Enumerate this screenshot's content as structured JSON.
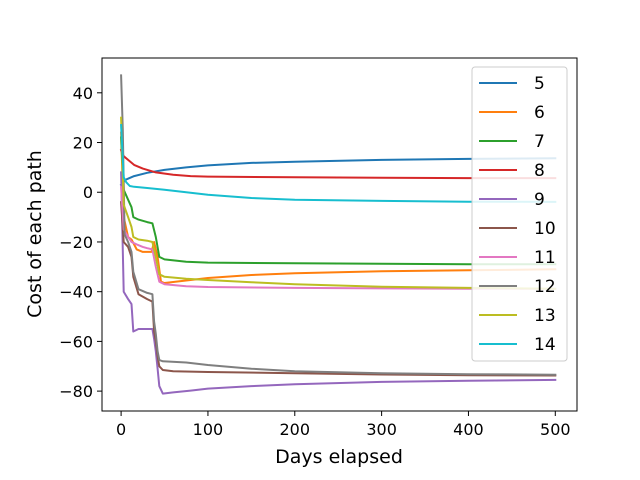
{
  "chart_data": {
    "type": "line",
    "title": "",
    "xlabel": "Days elapsed",
    "ylabel": "Cost of each path",
    "xlim": [
      -22,
      525
    ],
    "ylim": [
      -88,
      54
    ],
    "xticks": [
      0,
      100,
      200,
      300,
      400,
      500
    ],
    "yticks": [
      -80,
      -60,
      -40,
      -20,
      0,
      20,
      40
    ],
    "grid": false,
    "legend_position": "top-right",
    "series": [
      {
        "name": "5",
        "color": "#1f77b4",
        "points": [
          [
            0,
            3
          ],
          [
            5,
            5
          ],
          [
            15,
            6.5
          ],
          [
            30,
            7.8
          ],
          [
            50,
            9
          ],
          [
            75,
            10
          ],
          [
            100,
            10.8
          ],
          [
            150,
            11.8
          ],
          [
            200,
            12.3
          ],
          [
            300,
            13
          ],
          [
            400,
            13.4
          ],
          [
            500,
            13.7
          ]
        ]
      },
      {
        "name": "6",
        "color": "#ff7f0e",
        "points": [
          [
            0,
            24
          ],
          [
            3,
            -10
          ],
          [
            8,
            -18
          ],
          [
            12,
            -19
          ],
          [
            18,
            -23
          ],
          [
            25,
            -24
          ],
          [
            30,
            -24
          ],
          [
            35,
            -24
          ],
          [
            38,
            -20
          ],
          [
            42,
            -26
          ],
          [
            46,
            -36
          ],
          [
            50,
            -36.5
          ],
          [
            75,
            -35.5
          ],
          [
            100,
            -34.5
          ],
          [
            150,
            -33.3
          ],
          [
            200,
            -32.6
          ],
          [
            300,
            -31.8
          ],
          [
            400,
            -31.4
          ],
          [
            500,
            -31
          ]
        ]
      },
      {
        "name": "7",
        "color": "#2ca02c",
        "points": [
          [
            0,
            22
          ],
          [
            3,
            1
          ],
          [
            8,
            -3
          ],
          [
            12,
            -6
          ],
          [
            14,
            -10
          ],
          [
            20,
            -11
          ],
          [
            30,
            -12
          ],
          [
            36,
            -12.5
          ],
          [
            40,
            -18
          ],
          [
            44,
            -26
          ],
          [
            50,
            -27
          ],
          [
            75,
            -28
          ],
          [
            100,
            -28.3
          ],
          [
            200,
            -28.6
          ],
          [
            300,
            -28.8
          ],
          [
            400,
            -29
          ],
          [
            500,
            -29
          ]
        ]
      },
      {
        "name": "8",
        "color": "#d62728",
        "points": [
          [
            0,
            17
          ],
          [
            3,
            14.5
          ],
          [
            8,
            13
          ],
          [
            15,
            11
          ],
          [
            25,
            9.5
          ],
          [
            40,
            8
          ],
          [
            60,
            7
          ],
          [
            80,
            6.5
          ],
          [
            100,
            6.3
          ],
          [
            200,
            6
          ],
          [
            300,
            5.8
          ],
          [
            400,
            5.7
          ],
          [
            500,
            5.7
          ]
        ]
      },
      {
        "name": "9",
        "color": "#9467bd",
        "points": [
          [
            0,
            8
          ],
          [
            3,
            -40
          ],
          [
            8,
            -43
          ],
          [
            12,
            -45
          ],
          [
            14,
            -56
          ],
          [
            20,
            -55
          ],
          [
            30,
            -55
          ],
          [
            36,
            -55
          ],
          [
            38,
            -59
          ],
          [
            40,
            -64
          ],
          [
            42,
            -71
          ],
          [
            44,
            -78
          ],
          [
            48,
            -81
          ],
          [
            60,
            -80.5
          ],
          [
            80,
            -79.8
          ],
          [
            100,
            -79
          ],
          [
            150,
            -78
          ],
          [
            200,
            -77.2
          ],
          [
            300,
            -76.3
          ],
          [
            400,
            -75.8
          ],
          [
            500,
            -75.5
          ]
        ]
      },
      {
        "name": "10",
        "color": "#8c564b",
        "points": [
          [
            0,
            -4
          ],
          [
            3,
            -20
          ],
          [
            8,
            -22
          ],
          [
            12,
            -26
          ],
          [
            14,
            -34
          ],
          [
            20,
            -41
          ],
          [
            30,
            -43
          ],
          [
            36,
            -44
          ],
          [
            38,
            -56
          ],
          [
            40,
            -60
          ],
          [
            42,
            -66
          ],
          [
            44,
            -70
          ],
          [
            48,
            -71.5
          ],
          [
            60,
            -72
          ],
          [
            100,
            -72.3
          ],
          [
            200,
            -72.8
          ],
          [
            300,
            -73.3
          ],
          [
            400,
            -73.6
          ],
          [
            500,
            -73.7
          ]
        ]
      },
      {
        "name": "11",
        "color": "#e377c2",
        "points": [
          [
            0,
            2
          ],
          [
            3,
            -15
          ],
          [
            8,
            -18
          ],
          [
            12,
            -20
          ],
          [
            18,
            -21
          ],
          [
            25,
            -22
          ],
          [
            30,
            -22.5
          ],
          [
            36,
            -23
          ],
          [
            40,
            -30
          ],
          [
            44,
            -36
          ],
          [
            50,
            -37
          ],
          [
            75,
            -37.8
          ],
          [
            100,
            -38.1
          ],
          [
            200,
            -38.5
          ],
          [
            300,
            -38.7
          ],
          [
            400,
            -38.8
          ],
          [
            500,
            -38.9
          ]
        ]
      },
      {
        "name": "12",
        "color": "#7f7f7f",
        "points": [
          [
            0,
            47
          ],
          [
            2,
            25
          ],
          [
            4,
            -17
          ],
          [
            8,
            -20
          ],
          [
            12,
            -24
          ],
          [
            14,
            -32
          ],
          [
            20,
            -39
          ],
          [
            30,
            -40.5
          ],
          [
            36,
            -41
          ],
          [
            38,
            -52
          ],
          [
            40,
            -57
          ],
          [
            42,
            -64
          ],
          [
            44,
            -67.5
          ],
          [
            48,
            -68
          ],
          [
            75,
            -68.5
          ],
          [
            100,
            -69.5
          ],
          [
            150,
            -71
          ],
          [
            200,
            -72
          ],
          [
            300,
            -72.8
          ],
          [
            400,
            -73.2
          ],
          [
            500,
            -73.4
          ]
        ]
      },
      {
        "name": "13",
        "color": "#bcbd22",
        "points": [
          [
            0,
            30
          ],
          [
            3,
            -5
          ],
          [
            8,
            -10
          ],
          [
            12,
            -14
          ],
          [
            14,
            -18
          ],
          [
            20,
            -19
          ],
          [
            30,
            -19.5
          ],
          [
            36,
            -20
          ],
          [
            40,
            -26
          ],
          [
            44,
            -33
          ],
          [
            50,
            -34
          ],
          [
            75,
            -34.8
          ],
          [
            100,
            -35.3
          ],
          [
            150,
            -36.2
          ],
          [
            200,
            -37
          ],
          [
            300,
            -38
          ],
          [
            400,
            -38.5
          ],
          [
            500,
            -38.8
          ]
        ]
      },
      {
        "name": "14",
        "color": "#17becf",
        "points": [
          [
            0,
            27
          ],
          [
            3,
            6
          ],
          [
            6,
            4
          ],
          [
            10,
            2.5
          ],
          [
            15,
            2.2
          ],
          [
            30,
            1.7
          ],
          [
            50,
            1
          ],
          [
            75,
            0
          ],
          [
            100,
            -1
          ],
          [
            150,
            -2.3
          ],
          [
            200,
            -3
          ],
          [
            300,
            -3.5
          ],
          [
            400,
            -3.8
          ],
          [
            500,
            -3.9
          ]
        ]
      }
    ]
  }
}
